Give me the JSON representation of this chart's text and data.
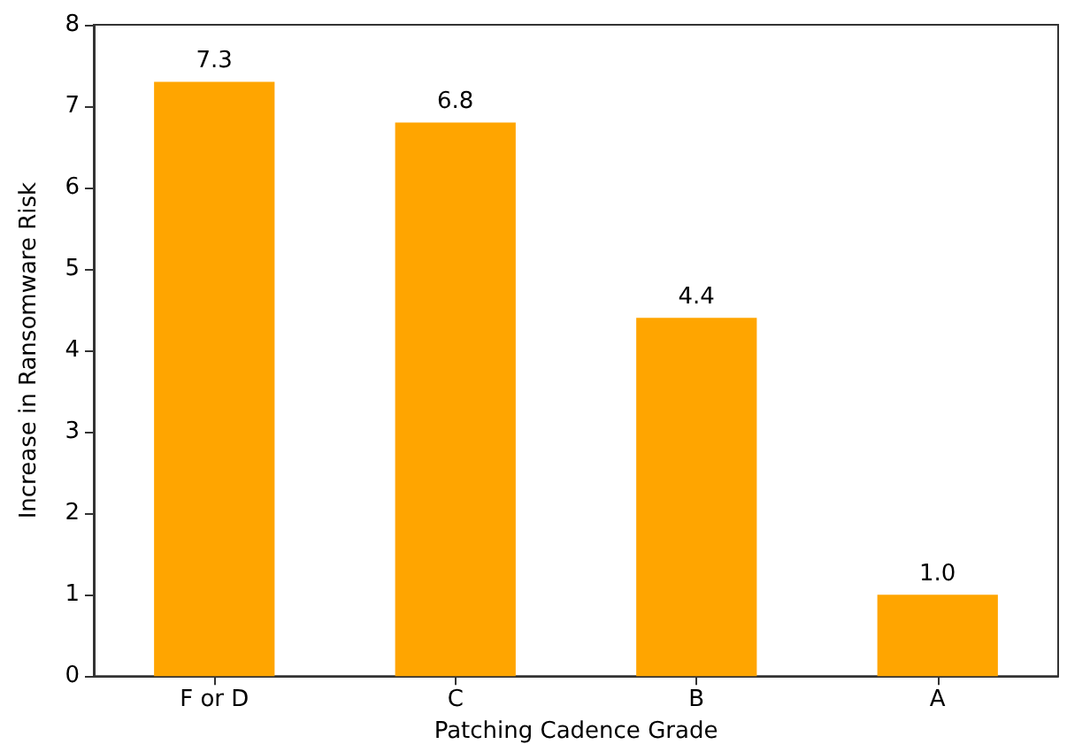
{
  "chart_data": {
    "type": "bar",
    "xlabel": "Patching Cadence Grade",
    "ylabel": "Increase in Ransomware Risk",
    "categories": [
      "F or D",
      "C",
      "B",
      "A"
    ],
    "values": [
      7.3,
      6.8,
      4.4,
      1.0
    ],
    "value_labels": [
      "7.3",
      "6.8",
      "4.4",
      "1.0"
    ],
    "color": "#ffa500",
    "ylim": [
      0,
      8
    ],
    "yticks": [
      0,
      1,
      2,
      3,
      4,
      5,
      6,
      7,
      8
    ],
    "grid": false
  }
}
